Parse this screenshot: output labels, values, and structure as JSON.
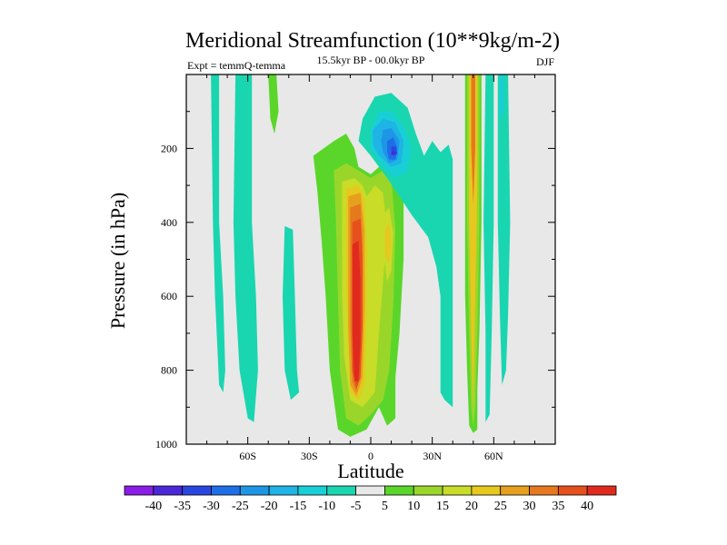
{
  "chart_data": {
    "type": "contour",
    "title": "Meridional Streamfunction (10**9kg/m-2)",
    "subtitle_left": "Expt = temmQ-temma",
    "subtitle_center": "15.5kyr BP - 00.0kyr BP",
    "subtitle_right": "DJF",
    "xlabel": "Latitude",
    "ylabel": "Pressure (in hPa)",
    "xlim": [
      -90,
      90
    ],
    "ylim": [
      1000,
      0
    ],
    "x_ticks": [
      {
        "value": -60,
        "label": "60S"
      },
      {
        "value": -30,
        "label": "30S"
      },
      {
        "value": 0,
        "label": "0"
      },
      {
        "value": 30,
        "label": "30N"
      },
      {
        "value": 60,
        "label": "60N"
      }
    ],
    "y_ticks": [
      {
        "value": 200,
        "label": "200"
      },
      {
        "value": 400,
        "label": "400"
      },
      {
        "value": 600,
        "label": "600"
      },
      {
        "value": 800,
        "label": "800"
      },
      {
        "value": 1000,
        "label": "1000"
      }
    ],
    "levels": [
      -40,
      -35,
      -30,
      -25,
      -20,
      -15,
      -10,
      -5,
      5,
      10,
      15,
      20,
      25,
      30,
      35,
      40
    ],
    "level_labels": [
      "-40",
      "-35",
      "-30",
      "-25",
      "-20",
      "-15",
      "-10",
      "-5",
      "5",
      "10",
      "15",
      "20",
      "25",
      "30",
      "35",
      "40"
    ],
    "colors": [
      "#8a1ee6",
      "#4a28d8",
      "#2a46e0",
      "#1e6ee6",
      "#1e96e6",
      "#1eb4e6",
      "#19cfd6",
      "#19d6b0",
      "#e8e8e8",
      "#5ad62a",
      "#9ad62a",
      "#c8dc28",
      "#e6c81e",
      "#e6a01e",
      "#e6781e",
      "#e6501e",
      "#e02a1e"
    ],
    "background_color": "#e8e8e8",
    "regions": [
      {
        "name": "cell-60S-column",
        "level": -5,
        "polygon": [
          [
            -78,
            0
          ],
          [
            -74,
            0
          ],
          [
            -74,
            400
          ],
          [
            -72,
            600
          ],
          [
            -71,
            800
          ],
          [
            -72,
            860
          ],
          [
            -74,
            840
          ],
          [
            -76,
            600
          ],
          [
            -77,
            400
          ]
        ]
      },
      {
        "name": "cell-50S-column",
        "level": -5,
        "polygon": [
          [
            -66,
            0
          ],
          [
            -58,
            0
          ],
          [
            -58,
            400
          ],
          [
            -56,
            600
          ],
          [
            -55,
            800
          ],
          [
            -57,
            940
          ],
          [
            -60,
            930
          ],
          [
            -64,
            800
          ],
          [
            -66,
            600
          ],
          [
            -67,
            400
          ]
        ]
      },
      {
        "name": "cell-45S-small",
        "level": 5,
        "polygon": [
          [
            -50,
            0
          ],
          [
            -46,
            0
          ],
          [
            -45,
            100
          ],
          [
            -47,
            160
          ],
          [
            -49,
            120
          ]
        ]
      },
      {
        "name": "cell-35S-column",
        "level": -5,
        "polygon": [
          [
            -42,
            410
          ],
          [
            -38,
            420
          ],
          [
            -37,
            600
          ],
          [
            -36,
            800
          ],
          [
            -35,
            860
          ],
          [
            -39,
            880
          ],
          [
            -42,
            800
          ],
          [
            -43,
            600
          ]
        ]
      },
      {
        "name": "cell-tropics-outer",
        "level": 5,
        "polygon": [
          [
            -28,
            220
          ],
          [
            -18,
            180
          ],
          [
            -12,
            160
          ],
          [
            -8,
            200
          ],
          [
            -6,
            250
          ],
          [
            0,
            270
          ],
          [
            6,
            240
          ],
          [
            12,
            260
          ],
          [
            16,
            320
          ],
          [
            16,
            500
          ],
          [
            14,
            700
          ],
          [
            12,
            820
          ],
          [
            12,
            930
          ],
          [
            8,
            950
          ],
          [
            4,
            900
          ],
          [
            -2,
            960
          ],
          [
            -10,
            980
          ],
          [
            -16,
            960
          ],
          [
            -20,
            800
          ],
          [
            -22,
            600
          ],
          [
            -24,
            450
          ],
          [
            -26,
            320
          ]
        ]
      },
      {
        "name": "cell-tropics-10",
        "level": 10,
        "polygon": [
          [
            -18,
            260
          ],
          [
            -12,
            240
          ],
          [
            -6,
            260
          ],
          [
            0,
            280
          ],
          [
            6,
            260
          ],
          [
            10,
            280
          ],
          [
            12,
            420
          ],
          [
            11,
            620
          ],
          [
            9,
            800
          ],
          [
            6,
            880
          ],
          [
            0,
            920
          ],
          [
            -6,
            950
          ],
          [
            -12,
            930
          ],
          [
            -15,
            800
          ],
          [
            -16,
            600
          ],
          [
            -17,
            400
          ]
        ]
      },
      {
        "name": "cell-tropics-15",
        "level": 15,
        "polygon": [
          [
            -14,
            290
          ],
          [
            -8,
            280
          ],
          [
            -4,
            300
          ],
          [
            -2,
            330
          ],
          [
            2,
            300
          ],
          [
            6,
            320
          ],
          [
            8,
            420
          ],
          [
            6,
            560
          ],
          [
            4,
            700
          ],
          [
            2,
            860
          ],
          [
            -4,
            900
          ],
          [
            -10,
            880
          ],
          [
            -13,
            760
          ],
          [
            -14,
            600
          ],
          [
            -14,
            420
          ]
        ]
      },
      {
        "name": "cell-tropics-20",
        "level": 20,
        "polygon": [
          [
            -12,
            310
          ],
          [
            -6,
            300
          ],
          [
            -3,
            340
          ],
          [
            -2,
            480
          ],
          [
            -2,
            650
          ],
          [
            -3,
            840
          ],
          [
            -6,
            880
          ],
          [
            -10,
            860
          ],
          [
            -11,
            720
          ],
          [
            -12,
            560
          ],
          [
            -12,
            420
          ]
        ]
      },
      {
        "name": "cell-tropics-25",
        "level": 25,
        "polygon": [
          [
            -11,
            330
          ],
          [
            -5,
            320
          ],
          [
            -3,
            420
          ],
          [
            -3,
            620
          ],
          [
            -4,
            820
          ],
          [
            -7,
            870
          ],
          [
            -10,
            840
          ],
          [
            -11,
            680
          ],
          [
            -11,
            500
          ]
        ]
      },
      {
        "name": "cell-tropics-30",
        "level": 30,
        "polygon": [
          [
            -10,
            360
          ],
          [
            -5,
            350
          ],
          [
            -4,
            450
          ],
          [
            -4,
            640
          ],
          [
            -5,
            800
          ],
          [
            -7,
            860
          ],
          [
            -9,
            830
          ],
          [
            -10,
            680
          ],
          [
            -10,
            500
          ]
        ]
      },
      {
        "name": "cell-tropics-35",
        "level": 35,
        "polygon": [
          [
            -9,
            400
          ],
          [
            -5,
            390
          ],
          [
            -4,
            500
          ],
          [
            -4,
            680
          ],
          [
            -5,
            820
          ],
          [
            -7,
            850
          ],
          [
            -9,
            800
          ],
          [
            -9,
            620
          ]
        ]
      },
      {
        "name": "cell-tropics-40",
        "level": 40,
        "polygon": [
          [
            -9,
            460
          ],
          [
            -6,
            450
          ],
          [
            -5,
            560
          ],
          [
            -5,
            720
          ],
          [
            -6,
            830
          ],
          [
            -8,
            830
          ],
          [
            -9,
            700
          ],
          [
            -9,
            560
          ]
        ]
      },
      {
        "name": "cell-5N-15",
        "level": 15,
        "polygon": [
          [
            6,
            380
          ],
          [
            9,
            360
          ],
          [
            11,
            430
          ],
          [
            10,
            530
          ],
          [
            8,
            560
          ],
          [
            6,
            480
          ]
        ]
      },
      {
        "name": "cell-5N-20",
        "level": 20,
        "polygon": [
          [
            7,
            420
          ],
          [
            9,
            400
          ],
          [
            10,
            460
          ],
          [
            9,
            510
          ],
          [
            7,
            490
          ]
        ]
      },
      {
        "name": "cell-upper-negative",
        "level": -5,
        "polygon": [
          [
            -4,
            120
          ],
          [
            2,
            60
          ],
          [
            10,
            50
          ],
          [
            18,
            90
          ],
          [
            22,
            160
          ],
          [
            26,
            220
          ],
          [
            30,
            180
          ],
          [
            34,
            210
          ],
          [
            38,
            190
          ],
          [
            40,
            230
          ],
          [
            40,
            900
          ],
          [
            36,
            880
          ],
          [
            34,
            860
          ],
          [
            34,
            600
          ],
          [
            32,
            520
          ],
          [
            30,
            480
          ],
          [
            28,
            440
          ],
          [
            20,
            380
          ],
          [
            14,
            330
          ],
          [
            8,
            280
          ],
          [
            0,
            220
          ],
          [
            -6,
            180
          ]
        ]
      },
      {
        "name": "cell-upper-10",
        "level": -10,
        "polygon": [
          [
            0,
            150
          ],
          [
            4,
            100
          ],
          [
            10,
            100
          ],
          [
            16,
            140
          ],
          [
            20,
            200
          ],
          [
            18,
            260
          ],
          [
            12,
            280
          ],
          [
            6,
            250
          ],
          [
            0,
            200
          ]
        ]
      },
      {
        "name": "cell-upper-15",
        "level": -15,
        "polygon": [
          [
            1,
            150
          ],
          [
            6,
            120
          ],
          [
            12,
            130
          ],
          [
            16,
            180
          ],
          [
            15,
            240
          ],
          [
            10,
            250
          ],
          [
            4,
            220
          ],
          [
            1,
            190
          ]
        ]
      },
      {
        "name": "cell-upper-20",
        "level": -20,
        "polygon": [
          [
            6,
            150
          ],
          [
            10,
            145
          ],
          [
            14,
            180
          ],
          [
            13,
            230
          ],
          [
            9,
            240
          ],
          [
            6,
            210
          ],
          [
            5,
            180
          ]
        ]
      },
      {
        "name": "cell-upper-25",
        "level": -25,
        "polygon": [
          [
            8,
            180
          ],
          [
            11,
            170
          ],
          [
            13,
            200
          ],
          [
            12,
            230
          ],
          [
            9,
            230
          ],
          [
            8,
            210
          ]
        ]
      },
      {
        "name": "cell-upper-30",
        "level": -30,
        "polygon": [
          [
            10,
            195
          ],
          [
            12,
            195
          ],
          [
            13,
            215
          ],
          [
            11,
            220
          ],
          [
            10,
            210
          ]
        ]
      },
      {
        "name": "cell-upper-35",
        "level": -35,
        "polygon": [
          [
            10,
            210
          ],
          [
            12,
            208
          ],
          [
            12,
            216
          ],
          [
            10,
            218
          ]
        ]
      },
      {
        "name": "cell-50N-jet",
        "level": 5,
        "polygon": [
          [
            46,
            0
          ],
          [
            54,
            0
          ],
          [
            54,
            400
          ],
          [
            53,
            700
          ],
          [
            52,
            850
          ],
          [
            52,
            960
          ],
          [
            50,
            970
          ],
          [
            48,
            950
          ],
          [
            47,
            800
          ],
          [
            46,
            600
          ],
          [
            46,
            400
          ]
        ]
      },
      {
        "name": "cell-50N-jet-10",
        "level": 10,
        "polygon": [
          [
            47,
            0
          ],
          [
            53,
            0
          ],
          [
            53,
            400
          ],
          [
            52,
            700
          ],
          [
            51,
            900
          ],
          [
            50,
            950
          ],
          [
            49,
            900
          ],
          [
            48,
            700
          ],
          [
            47,
            400
          ]
        ]
      },
      {
        "name": "cell-50N-jet-20",
        "level": 20,
        "polygon": [
          [
            48,
            0
          ],
          [
            52,
            0
          ],
          [
            52,
            300
          ],
          [
            51,
            600
          ],
          [
            50,
            900
          ],
          [
            49,
            700
          ],
          [
            48,
            400
          ]
        ]
      },
      {
        "name": "cell-50N-jet-30",
        "level": 30,
        "polygon": [
          [
            49,
            0
          ],
          [
            51,
            0
          ],
          [
            51,
            200
          ],
          [
            50,
            350
          ],
          [
            49,
            200
          ]
        ]
      },
      {
        "name": "cell-58N-column",
        "level": -5,
        "polygon": [
          [
            56,
            0
          ],
          [
            60,
            0
          ],
          [
            60,
            400
          ],
          [
            59,
            700
          ],
          [
            58,
            920
          ],
          [
            56,
            940
          ],
          [
            56,
            700
          ],
          [
            55,
            400
          ]
        ]
      },
      {
        "name": "cell-60N-column",
        "level": -5,
        "polygon": [
          [
            62,
            0
          ],
          [
            67,
            0
          ],
          [
            68,
            400
          ],
          [
            67,
            650
          ],
          [
            66,
            800
          ],
          [
            64,
            840
          ],
          [
            63,
            650
          ],
          [
            62,
            400
          ]
        ]
      },
      {
        "name": "cell-60N-neg10",
        "level": -10,
        "polygon": [
          [
            63,
            0
          ],
          [
            65,
            0
          ],
          [
            65,
            100
          ],
          [
            64,
            120
          ],
          [
            63,
            100
          ]
        ]
      }
    ]
  }
}
